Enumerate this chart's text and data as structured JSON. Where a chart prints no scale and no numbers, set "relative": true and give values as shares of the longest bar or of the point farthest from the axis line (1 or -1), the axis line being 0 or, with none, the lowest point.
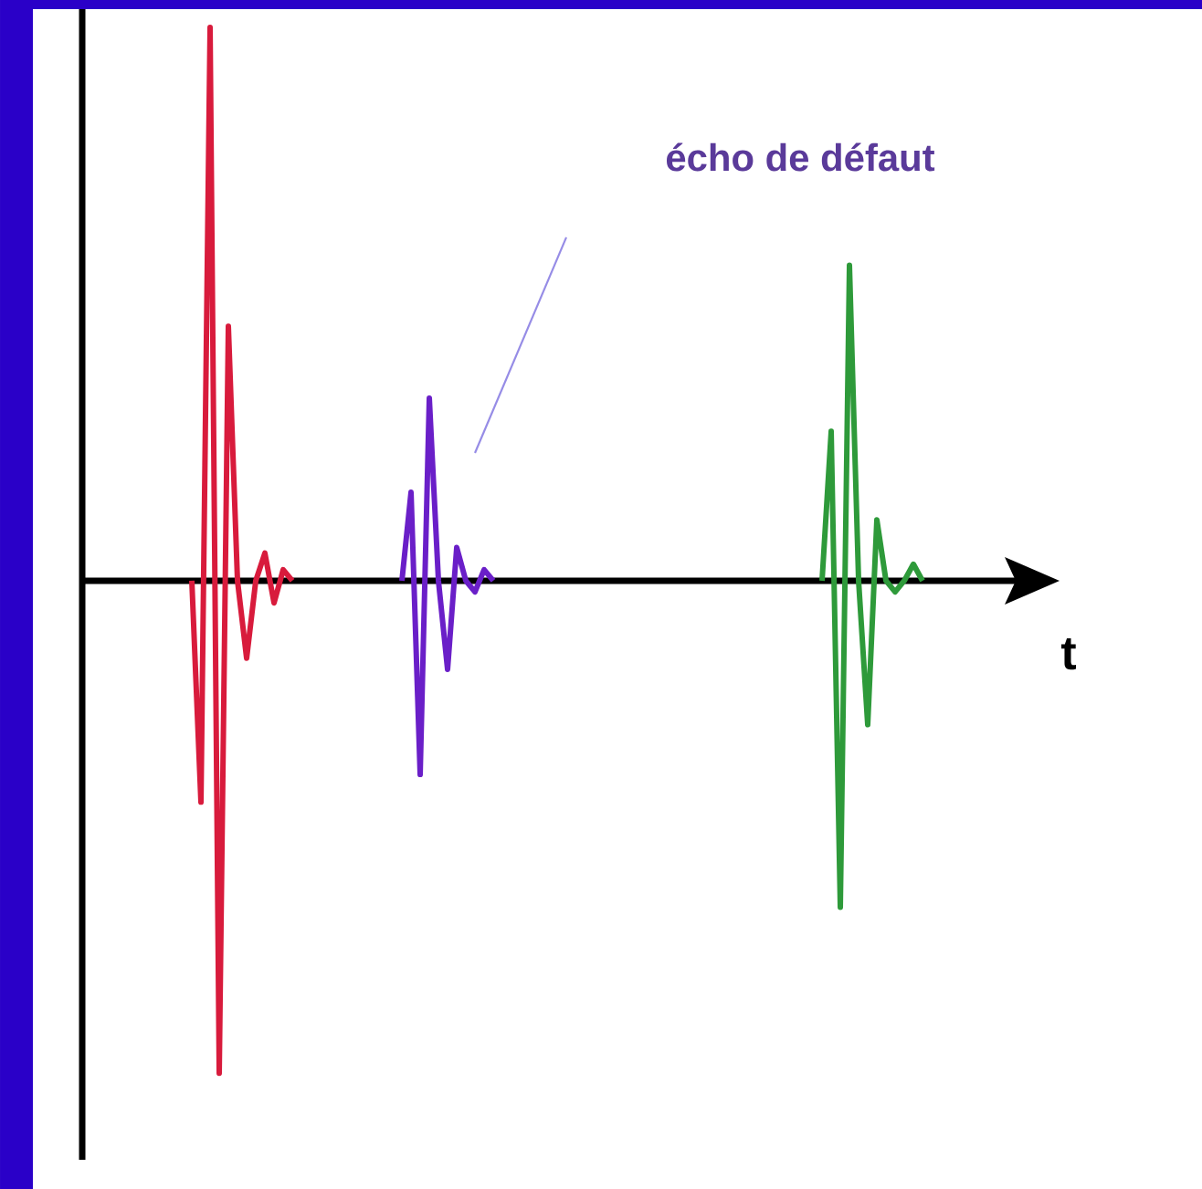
{
  "chart_data": {
    "type": "line",
    "relative": true,
    "xlabel": "t",
    "annotations": [
      "écho de défaut"
    ],
    "categories": [
      null,
      null,
      null,
      null,
      null,
      null,
      null,
      null,
      null,
      null,
      null,
      null,
      null,
      null,
      null,
      null,
      null,
      null,
      null,
      null,
      null,
      null,
      null,
      null,
      null,
      null,
      null,
      null,
      null,
      null,
      null,
      null,
      null,
      null,
      null,
      null,
      null,
      null,
      null,
      null,
      null,
      null,
      null,
      null,
      null,
      null,
      null,
      null,
      null,
      null,
      null,
      null,
      null,
      null,
      null,
      null,
      null,
      null,
      null,
      null,
      null,
      null,
      null,
      null,
      null,
      null,
      null,
      null,
      null,
      null,
      null,
      null,
      null,
      null,
      null,
      null,
      null,
      null,
      null,
      null,
      null,
      null,
      null,
      null,
      null,
      null,
      null,
      null,
      null,
      null,
      null,
      null,
      null,
      null,
      null,
      null,
      null,
      null,
      null,
      null,
      null,
      null,
      null,
      null,
      null,
      null,
      null
    ],
    "series": [
      {
        "color": "#d81b3c",
        "values": [
          null,
          null,
          null,
          null,
          null,
          null,
          null,
          null,
          null,
          null,
          null,
          null,
          0,
          -0.4,
          1.0,
          -0.89,
          0.46,
          0,
          -0.14,
          0,
          0.05,
          -0.04,
          0.02,
          0,
          null,
          null,
          null,
          null,
          null,
          null,
          null,
          null,
          null,
          null,
          null,
          null,
          null,
          null,
          null,
          null,
          null,
          null,
          null,
          null,
          null,
          null,
          null,
          null,
          null,
          null,
          null,
          null,
          null,
          null,
          null,
          null,
          null,
          null,
          null,
          null,
          null,
          null,
          null,
          null,
          null,
          null,
          null,
          null,
          null,
          null,
          null,
          null,
          null,
          null,
          null,
          null,
          null,
          null,
          null,
          null,
          null,
          null,
          null,
          null,
          null,
          null,
          null,
          null,
          null,
          null,
          null,
          null,
          null,
          null,
          null,
          null,
          null,
          null,
          null,
          null,
          null,
          null,
          null,
          null,
          null,
          null,
          null
        ]
      },
      {
        "color": "#6a1fc8",
        "values": [
          null,
          null,
          null,
          null,
          null,
          null,
          null,
          null,
          null,
          null,
          null,
          null,
          null,
          null,
          null,
          null,
          null,
          null,
          null,
          null,
          null,
          null,
          null,
          null,
          null,
          null,
          null,
          null,
          null,
          null,
          null,
          null,
          null,
          null,
          null,
          0,
          0.16,
          -0.35,
          0.33,
          0,
          -0.16,
          0.06,
          0,
          -0.02,
          0.02,
          0,
          null,
          null,
          null,
          null,
          null,
          null,
          null,
          null,
          null,
          null,
          null,
          null,
          null,
          null,
          null,
          null,
          null,
          null,
          null,
          null,
          null,
          null,
          null,
          null,
          null,
          null,
          null,
          null,
          null,
          null,
          null,
          null,
          null,
          null,
          null,
          null,
          null,
          null,
          null,
          null,
          null,
          null,
          null,
          null,
          null,
          null,
          null,
          null,
          null,
          null,
          null,
          null,
          null,
          null,
          null,
          null,
          null,
          null,
          null,
          null,
          null
        ]
      },
      {
        "color": "#2e9a3a",
        "values": [
          null,
          null,
          null,
          null,
          null,
          null,
          null,
          null,
          null,
          null,
          null,
          null,
          null,
          null,
          null,
          null,
          null,
          null,
          null,
          null,
          null,
          null,
          null,
          null,
          null,
          null,
          null,
          null,
          null,
          null,
          null,
          null,
          null,
          null,
          null,
          null,
          null,
          null,
          null,
          null,
          null,
          null,
          null,
          null,
          null,
          null,
          null,
          null,
          null,
          null,
          null,
          null,
          null,
          null,
          null,
          null,
          null,
          null,
          null,
          null,
          null,
          null,
          null,
          null,
          null,
          null,
          null,
          null,
          null,
          null,
          null,
          null,
          null,
          null,
          null,
          null,
          null,
          null,
          null,
          null,
          null,
          0,
          0.27,
          -0.59,
          0.57,
          0,
          -0.26,
          0.11,
          0,
          -0.02,
          0,
          0.03,
          0,
          null,
          null,
          null,
          null,
          null,
          null,
          null,
          null,
          null,
          null,
          null,
          null,
          null,
          null
        ]
      }
    ]
  }
}
